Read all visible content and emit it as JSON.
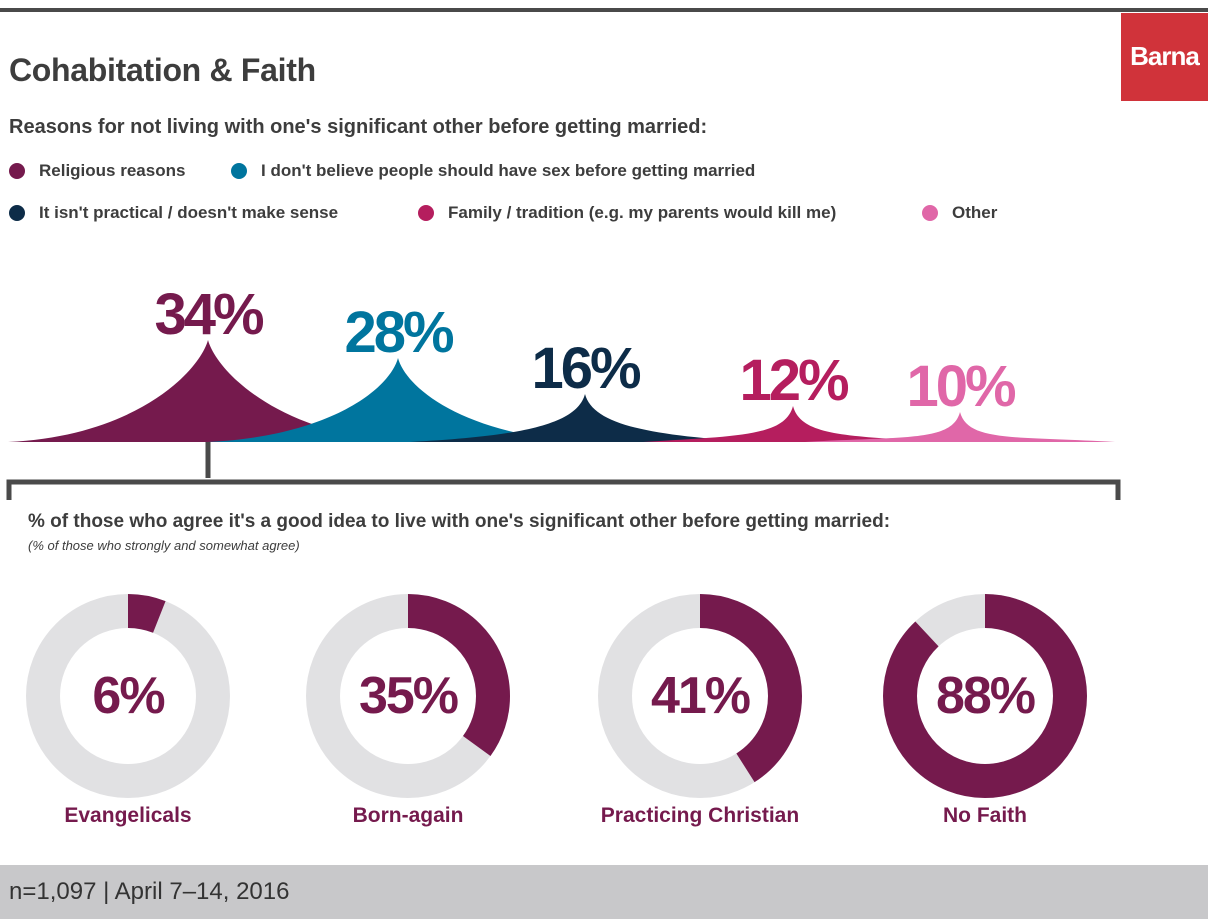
{
  "title": "Cohabitation & Faith",
  "logo_text": "Barna",
  "reasons_chart": {
    "subtitle": "Reasons for not living with one's significant other before getting married:",
    "legend": [
      {
        "label": "Religious reasons",
        "color": "#751a4d"
      },
      {
        "label": "I don't believe people should have sex before getting married",
        "color": "#00759e"
      },
      {
        "label": "It isn't practical / doesn't make sense",
        "color": "#0d2c48"
      },
      {
        "label": "Family / tradition (e.g. my parents would kill me)",
        "color": "#b51e5e"
      },
      {
        "label": "Other",
        "color": "#e067a8"
      }
    ]
  },
  "agree_chart": {
    "title": "% of those who agree it's a good idea to live with one's significant other before getting married:",
    "note": "(% of those who strongly and somewhat agree)",
    "track_color": "#e1e1e3",
    "fill_color": "#751a4d"
  },
  "chart_data": [
    {
      "type": "area",
      "categories": [
        "Religious reasons",
        "I don't believe people should have sex before getting married",
        "It isn't practical / doesn't make sense",
        "Family / tradition (e.g. my parents would kill me)",
        "Other"
      ],
      "values": [
        34,
        28,
        16,
        12,
        10
      ],
      "labels": [
        "34%",
        "28%",
        "16%",
        "12%",
        "10%"
      ]
    },
    {
      "type": "pie",
      "categories": [
        "Evangelicals",
        "Born-again",
        "Practicing Christian",
        "No Faith"
      ],
      "values": [
        6,
        35,
        41,
        88
      ],
      "labels": [
        "6%",
        "35%",
        "41%",
        "88%"
      ]
    }
  ],
  "footer": "n=1,097 | April 7–14, 2016"
}
